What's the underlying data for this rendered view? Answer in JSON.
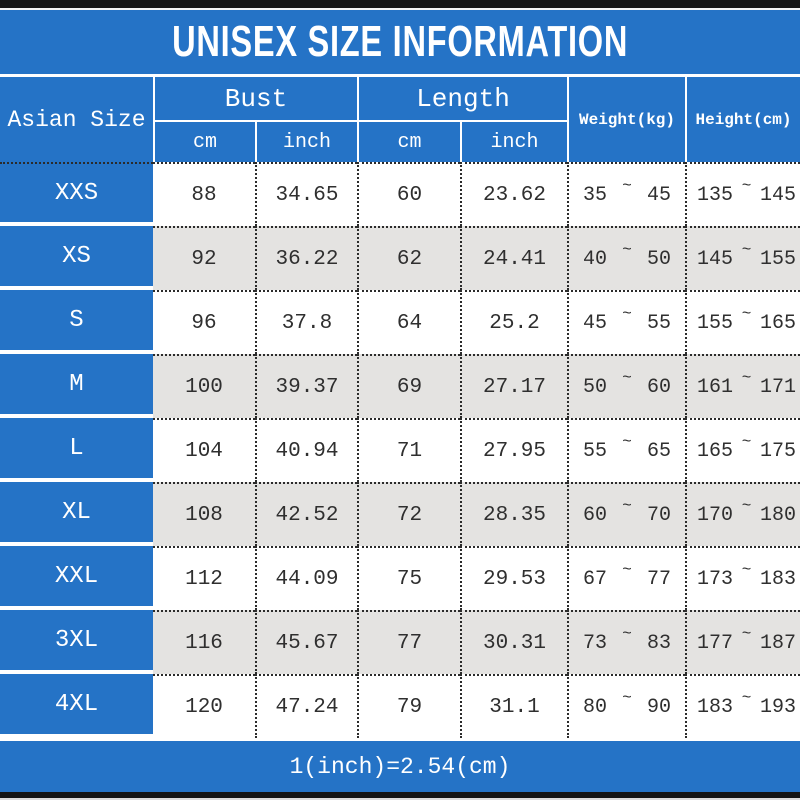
{
  "title": "UNISEX SIZE INFORMATION",
  "footer_note": "1(inch)=2.54(cm)",
  "tilde": "~",
  "colors": {
    "blue": "#2573c6",
    "alt_row_gray": "#e4e3e1",
    "bar_black": "#161616",
    "text_dark": "#2f2f2f",
    "white": "#ffffff"
  },
  "header": {
    "size_col": "Asian Size",
    "bust": "Bust",
    "length": "Length",
    "weight": "Weight(kg)",
    "height": "Height(cm)",
    "cm": "cm",
    "inch": "inch"
  },
  "rows": [
    {
      "size": "XXS",
      "bust_cm": "88",
      "bust_inch": "34.65",
      "length_cm": "60",
      "length_inch": "23.62",
      "weight_min": "35",
      "weight_max": "45",
      "height_min": "135",
      "height_max": "145"
    },
    {
      "size": "XS",
      "bust_cm": "92",
      "bust_inch": "36.22",
      "length_cm": "62",
      "length_inch": "24.41",
      "weight_min": "40",
      "weight_max": "50",
      "height_min": "145",
      "height_max": "155"
    },
    {
      "size": "S",
      "bust_cm": "96",
      "bust_inch": "37.8",
      "length_cm": "64",
      "length_inch": "25.2",
      "weight_min": "45",
      "weight_max": "55",
      "height_min": "155",
      "height_max": "165"
    },
    {
      "size": "M",
      "bust_cm": "100",
      "bust_inch": "39.37",
      "length_cm": "69",
      "length_inch": "27.17",
      "weight_min": "50",
      "weight_max": "60",
      "height_min": "161",
      "height_max": "171"
    },
    {
      "size": "L",
      "bust_cm": "104",
      "bust_inch": "40.94",
      "length_cm": "71",
      "length_inch": "27.95",
      "weight_min": "55",
      "weight_max": "65",
      "height_min": "165",
      "height_max": "175"
    },
    {
      "size": "XL",
      "bust_cm": "108",
      "bust_inch": "42.52",
      "length_cm": "72",
      "length_inch": "28.35",
      "weight_min": "60",
      "weight_max": "70",
      "height_min": "170",
      "height_max": "180"
    },
    {
      "size": "XXL",
      "bust_cm": "112",
      "bust_inch": "44.09",
      "length_cm": "75",
      "length_inch": "29.53",
      "weight_min": "67",
      "weight_max": "77",
      "height_min": "173",
      "height_max": "183"
    },
    {
      "size": "3XL",
      "bust_cm": "116",
      "bust_inch": "45.67",
      "length_cm": "77",
      "length_inch": "30.31",
      "weight_min": "73",
      "weight_max": "83",
      "height_min": "177",
      "height_max": "187"
    },
    {
      "size": "4XL",
      "bust_cm": "120",
      "bust_inch": "47.24",
      "length_cm": "79",
      "length_inch": "31.1",
      "weight_min": "80",
      "weight_max": "90",
      "height_min": "183",
      "height_max": "193"
    }
  ]
}
